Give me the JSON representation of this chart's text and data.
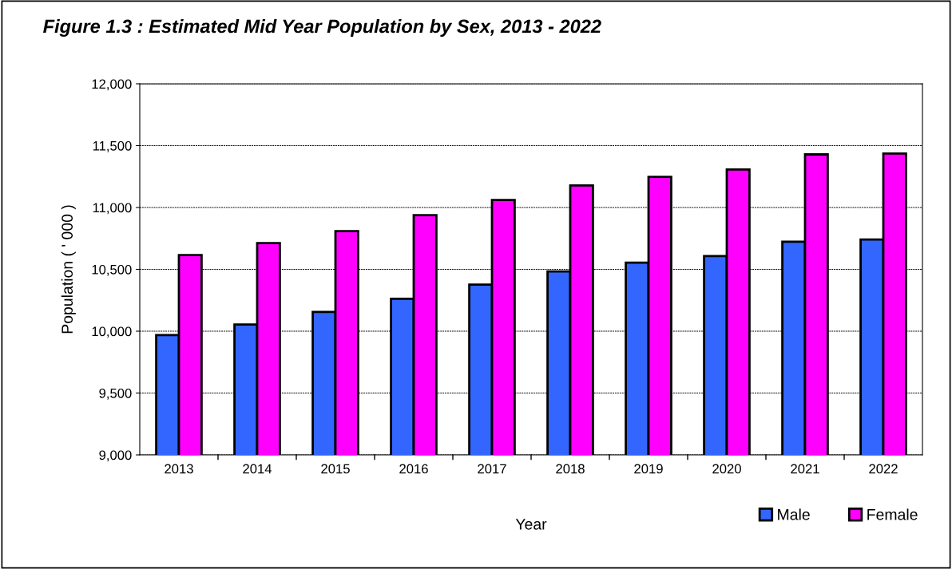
{
  "chart_data": {
    "type": "bar",
    "title": "Figure 1.3 : Estimated Mid Year Population by Sex, 2013 - 2022",
    "xlabel": "Year",
    "ylabel": "Population ( ' 000 )",
    "categories": [
      "2013",
      "2014",
      "2015",
      "2016",
      "2017",
      "2018",
      "2019",
      "2020",
      "2021",
      "2022"
    ],
    "series": [
      {
        "name": "Male",
        "color": "#3366ff",
        "values": [
          9968,
          10054,
          10155,
          10262,
          10376,
          10483,
          10554,
          10607,
          10723,
          10741
        ]
      },
      {
        "name": "Female",
        "color": "#ff00ff",
        "values": [
          10616,
          10712,
          10809,
          10938,
          11060,
          11178,
          11247,
          11307,
          11429,
          11436
        ]
      }
    ],
    "ylim": [
      9000,
      12000
    ],
    "yticks": [
      {
        "value": 9000,
        "label": "9,000"
      },
      {
        "value": 9500,
        "label": "9,500"
      },
      {
        "value": 10000,
        "label": "10,000"
      },
      {
        "value": 10500,
        "label": "10,500"
      },
      {
        "value": 11000,
        "label": "11,000"
      },
      {
        "value": 11500,
        "label": "11,500"
      },
      {
        "value": 12000,
        "label": "12,000"
      }
    ],
    "grid": "y",
    "legend": "bottom right"
  }
}
